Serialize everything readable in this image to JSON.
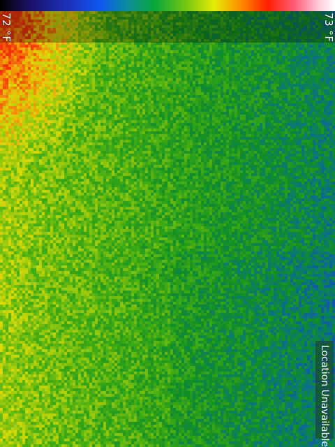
{
  "palette": {
    "colors": [
      "#000000",
      "#1b2fb8",
      "#0f58f0",
      "#08a63a",
      "#7bc80d",
      "#e8ea08",
      "#ff8a00",
      "#ff1e00",
      "#ff5e7b",
      "#ffffff"
    ]
  },
  "temperature_range": {
    "min_label": "72 °F",
    "max_label": "73 °F"
  },
  "status": {
    "location": "Location Unavailable"
  }
}
